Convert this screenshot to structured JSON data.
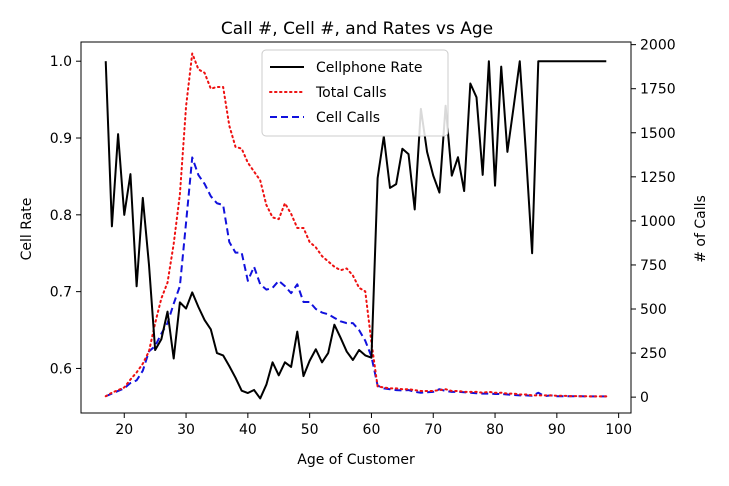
{
  "chart_data": {
    "type": "line",
    "title": "Call #, Cell #, and Rates vs Age",
    "xlabel": "Age of Customer",
    "ylabel": "Cell Rate",
    "y2label": "# of Calls",
    "xlim": [
      13,
      102
    ],
    "ylim": [
      0.542,
      1.025
    ],
    "y2lim": [
      -90,
      2015
    ],
    "xticks": [
      20,
      30,
      40,
      50,
      60,
      70,
      80,
      90,
      100
    ],
    "xtick_labels": [
      "20",
      "30",
      "40",
      "50",
      "60",
      "70",
      "80",
      "90",
      "100"
    ],
    "yticks": [
      0.6,
      0.7,
      0.8,
      0.9,
      1.0
    ],
    "ytick_labels": [
      "0.6",
      "0.7",
      "0.8",
      "0.9",
      "1.0"
    ],
    "y2ticks": [
      0,
      250,
      500,
      750,
      1000,
      1250,
      1500,
      1750,
      2000
    ],
    "y2tick_labels": [
      "0",
      "250",
      "500",
      "750",
      "1000",
      "1250",
      "1500",
      "1750",
      "2000"
    ],
    "grid": false,
    "legend_position": "top-center",
    "series": [
      {
        "name": "Cellphone Rate",
        "axis": "left",
        "color": "#000000",
        "style": "solid",
        "x": [
          17,
          18,
          19,
          20,
          21,
          22,
          23,
          24,
          25,
          26,
          27,
          28,
          29,
          30,
          31,
          32,
          33,
          34,
          35,
          36,
          37,
          38,
          39,
          40,
          41,
          42,
          43,
          44,
          45,
          46,
          47,
          48,
          49,
          50,
          51,
          52,
          53,
          54,
          55,
          56,
          57,
          58,
          59,
          60,
          61,
          62,
          63,
          64,
          65,
          66,
          67,
          68,
          69,
          70,
          71,
          72,
          73,
          74,
          75,
          76,
          77,
          78,
          79,
          80,
          81,
          82,
          83,
          84,
          85,
          86,
          87,
          88,
          89,
          90,
          91,
          92,
          93,
          94,
          95,
          96,
          97,
          98
        ],
        "y": [
          1.0,
          0.785,
          0.905,
          0.8,
          0.853,
          0.707,
          0.822,
          0.735,
          0.624,
          0.638,
          0.674,
          0.613,
          0.686,
          0.678,
          0.699,
          0.68,
          0.663,
          0.651,
          0.62,
          0.617,
          0.603,
          0.588,
          0.571,
          0.568,
          0.572,
          0.561,
          0.579,
          0.608,
          0.591,
          0.608,
          0.602,
          0.648,
          0.59,
          0.61,
          0.625,
          0.608,
          0.62,
          0.657,
          0.64,
          0.622,
          0.611,
          0.624,
          0.617,
          0.614,
          0.848,
          0.902,
          0.835,
          0.84,
          0.886,
          0.879,
          0.807,
          0.938,
          0.882,
          0.851,
          0.829,
          0.942,
          0.851,
          0.875,
          0.831,
          0.971,
          0.953,
          0.852,
          1.0,
          0.838,
          0.993,
          0.882,
          0.94,
          1.0,
          0.88,
          0.75,
          1.0,
          1.0,
          1.0,
          1.0,
          1.0,
          1.0,
          1.0,
          1.0,
          1.0,
          1.0,
          1.0,
          1.0
        ]
      },
      {
        "name": "Total Calls",
        "axis": "right",
        "color": "#ee1111",
        "style": "dotted",
        "x": [
          17,
          18,
          19,
          20,
          21,
          22,
          23,
          24,
          25,
          26,
          27,
          28,
          29,
          30,
          31,
          32,
          33,
          34,
          35,
          36,
          37,
          38,
          39,
          40,
          41,
          42,
          43,
          44,
          45,
          46,
          47,
          48,
          49,
          50,
          51,
          52,
          53,
          54,
          55,
          56,
          57,
          58,
          59,
          60,
          61,
          62,
          63,
          64,
          65,
          66,
          67,
          68,
          69,
          70,
          71,
          72,
          73,
          74,
          75,
          76,
          77,
          78,
          79,
          80,
          81,
          82,
          83,
          84,
          85,
          86,
          87,
          88,
          89,
          90,
          91,
          92,
          93,
          94,
          95,
          96,
          97,
          98
        ],
        "y": [
          5,
          25,
          40,
          55,
          100,
          140,
          190,
          260,
          420,
          560,
          650,
          870,
          1150,
          1650,
          1950,
          1860,
          1840,
          1750,
          1760,
          1760,
          1540,
          1420,
          1410,
          1330,
          1280,
          1230,
          1090,
          1020,
          1010,
          1100,
          1040,
          960,
          960,
          880,
          850,
          800,
          770,
          740,
          720,
          730,
          690,
          620,
          600,
          310,
          60,
          55,
          50,
          50,
          45,
          45,
          40,
          35,
          35,
          35,
          40,
          45,
          35,
          35,
          30,
          30,
          30,
          25,
          30,
          25,
          25,
          20,
          20,
          15,
          15,
          10,
          10,
          10,
          10,
          8,
          8,
          6,
          6,
          5,
          5,
          4,
          4,
          4
        ]
      },
      {
        "name": "Cell Calls",
        "axis": "right",
        "color": "#1111dd",
        "style": "dashed",
        "x": [
          17,
          18,
          19,
          20,
          21,
          22,
          23,
          24,
          25,
          26,
          27,
          28,
          29,
          30,
          31,
          32,
          33,
          34,
          35,
          36,
          37,
          38,
          39,
          40,
          41,
          42,
          43,
          44,
          45,
          46,
          47,
          48,
          49,
          50,
          51,
          52,
          53,
          54,
          55,
          56,
          57,
          58,
          59,
          60,
          61,
          62,
          63,
          64,
          65,
          66,
          67,
          68,
          69,
          70,
          71,
          72,
          73,
          74,
          75,
          76,
          77,
          78,
          79,
          80,
          81,
          82,
          83,
          84,
          85,
          86,
          87,
          88,
          89,
          90,
          91,
          92,
          93,
          94,
          95,
          96,
          97,
          98
        ],
        "y": [
          5,
          20,
          35,
          50,
          80,
          95,
          150,
          260,
          290,
          360,
          420,
          530,
          630,
          990,
          1360,
          1260,
          1210,
          1140,
          1100,
          1090,
          880,
          820,
          820,
          660,
          740,
          640,
          610,
          620,
          660,
          630,
          590,
          640,
          540,
          540,
          500,
          480,
          470,
          450,
          430,
          420,
          420,
          380,
          320,
          230,
          65,
          50,
          45,
          40,
          38,
          40,
          30,
          25,
          28,
          30,
          45,
          35,
          30,
          30,
          28,
          25,
          22,
          20,
          20,
          18,
          18,
          15,
          12,
          10,
          10,
          8,
          25,
          6,
          10,
          5,
          5,
          5,
          5,
          5,
          4,
          4,
          4,
          4
        ]
      }
    ]
  }
}
